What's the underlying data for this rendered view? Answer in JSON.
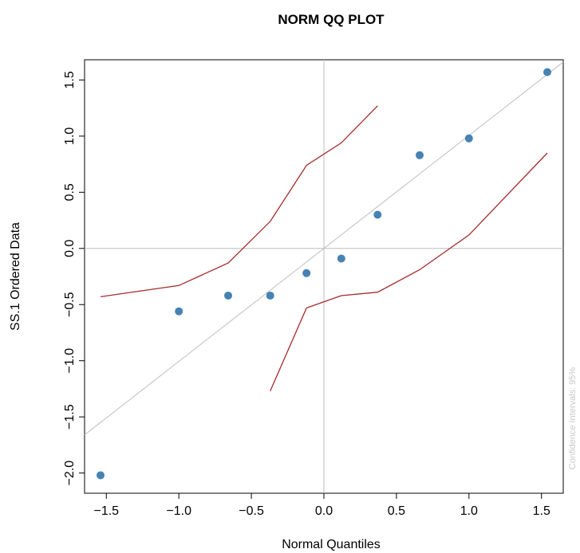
{
  "chart_data": {
    "type": "scatter",
    "title": "NORM QQ PLOT",
    "xlabel": "Normal Quantiles",
    "ylabel": "SS.1 Ordered Data",
    "xlim": [
      -1.65,
      1.65
    ],
    "ylim": [
      -2.18,
      1.68
    ],
    "x_ticks": [
      -1.5,
      -1.0,
      -0.5,
      0.0,
      0.5,
      1.0,
      1.5
    ],
    "x_tick_labels": [
      "−1.5",
      "−1.0",
      "−0.5",
      "0.0",
      "0.5",
      "1.0",
      "1.5"
    ],
    "y_ticks": [
      -2.0,
      -1.5,
      -1.0,
      -0.5,
      0.0,
      0.5,
      1.0,
      1.5
    ],
    "y_tick_labels": [
      "−2.0",
      "−1.5",
      "−1.0",
      "−0.5",
      "0.0",
      "0.5",
      "1.0",
      "1.5"
    ],
    "grid": false,
    "note": "Confidence Intervals: 95%",
    "points": {
      "color": "#4682b4",
      "x": [
        -1.54,
        -1.0,
        -0.66,
        -0.37,
        -0.12,
        0.12,
        0.37,
        0.66,
        1.0,
        1.54
      ],
      "y": [
        -2.02,
        -0.56,
        -0.42,
        -0.42,
        -0.22,
        -0.09,
        0.3,
        0.83,
        0.98,
        1.57
      ]
    },
    "reference_line": {
      "color": "#bebebe",
      "x": [
        -1.65,
        1.65
      ],
      "y": [
        -1.66,
        1.66
      ]
    },
    "zero_lines": {
      "color": "#bebebe",
      "x": 0.0,
      "y": 0.0
    },
    "confidence_band": {
      "color": "#a52a2a",
      "upper": {
        "x": [
          -1.54,
          -1.0,
          -0.66,
          -0.37,
          -0.12,
          0.12,
          0.37
        ],
        "y": [
          -0.43,
          -0.33,
          -0.13,
          0.24,
          0.74,
          0.94,
          1.27
        ]
      },
      "lower": {
        "x": [
          -0.37,
          -0.12,
          0.12,
          0.37,
          0.66,
          1.0,
          1.54
        ],
        "y": [
          -1.27,
          -0.53,
          -0.42,
          -0.39,
          -0.19,
          0.12,
          0.85
        ]
      }
    }
  }
}
